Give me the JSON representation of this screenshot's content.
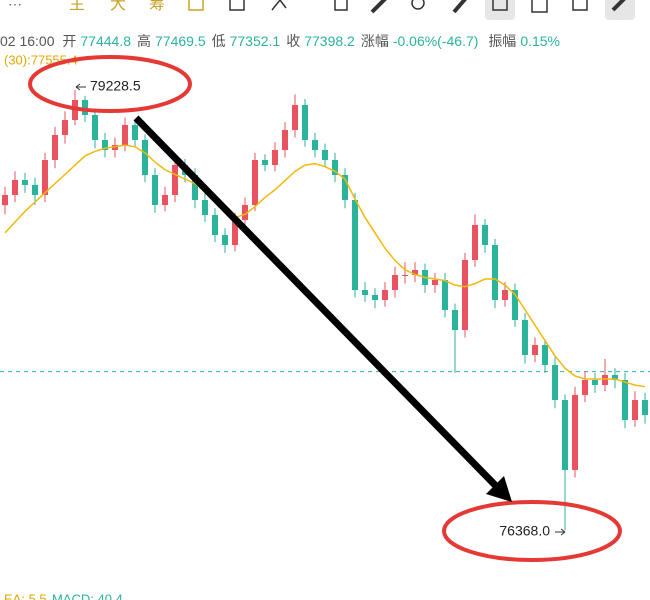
{
  "toolbar": {
    "more": "···",
    "tabs": [
      "主",
      "大",
      "筹"
    ]
  },
  "info_bar": {
    "time": "02 16:00",
    "items": [
      {
        "label": "开",
        "value": 77444.8
      },
      {
        "label": "高",
        "value": 77469.5
      },
      {
        "label": "低",
        "value": 77352.1
      },
      {
        "label": "收",
        "value": 77398.2
      }
    ],
    "change_label": "涨幅",
    "change": "-0.06%(-46.7)",
    "amplitude_label": "振幅",
    "amplitude": "0.15%"
  },
  "chart_data": {
    "type": "candlestick",
    "ma_label": "(30):77555.4",
    "up_color": "#e8535f",
    "down_color": "#2bb39c",
    "ma_color": "#f0b90b",
    "current_color": "#2bb39c",
    "ylim": [
      75978.5,
      79488.5
    ],
    "candles": [
      [
        78480,
        78600,
        78420,
        78546
      ],
      [
        78546,
        78700,
        78500,
        78643.5
      ],
      [
        78643.5,
        78690,
        78560,
        78611
      ],
      [
        78611,
        78660,
        78480,
        78546
      ],
      [
        78546,
        78820,
        78500,
        78773.5
      ],
      [
        78773.5,
        78990,
        78720,
        78936
      ],
      [
        78936,
        79090,
        78880,
        79033.5
      ],
      [
        79033.5,
        79228.5,
        79000,
        79163.5
      ],
      [
        79163.5,
        79190,
        79020,
        79066
      ],
      [
        79066,
        79110,
        78850,
        78903.5
      ],
      [
        78903.5,
        78950,
        78790,
        78838.5
      ],
      [
        78838.5,
        78920,
        78790,
        78871
      ],
      [
        78871,
        79050,
        78830,
        79001
      ],
      [
        79001,
        79040,
        78860,
        78903.5
      ],
      [
        78903.5,
        78940,
        78630,
        78676
      ],
      [
        78676,
        78720,
        78430,
        78481
      ],
      [
        78481,
        78600,
        78440,
        78546
      ],
      [
        78546,
        78790,
        78500,
        78741
      ],
      [
        78741,
        78780,
        78630,
        78676
      ],
      [
        78676,
        78720,
        78460,
        78513.5
      ],
      [
        78513.5,
        78560,
        78370,
        78416
      ],
      [
        78416,
        78460,
        78240,
        78286
      ],
      [
        78286,
        78330,
        78170,
        78221
      ],
      [
        78221,
        78430,
        78180,
        78383.5
      ],
      [
        78383.5,
        78530,
        78340,
        78481
      ],
      [
        78481,
        78820,
        78440,
        78773.5
      ],
      [
        78773.5,
        78810,
        78700,
        78741
      ],
      [
        78741,
        78890,
        78700,
        78838.5
      ],
      [
        78838.5,
        79020,
        78790,
        78968.5
      ],
      [
        78968.5,
        79200,
        78920,
        79131
      ],
      [
        79131,
        79170,
        78860,
        78903.5
      ],
      [
        78903.5,
        78950,
        78790,
        78838.5
      ],
      [
        78838.5,
        78880,
        78730,
        78773.5
      ],
      [
        78773.5,
        78820,
        78630,
        78676
      ],
      [
        78676,
        78720,
        78460,
        78513.5
      ],
      [
        78513.5,
        78560,
        77880,
        77928.5
      ],
      [
        77928.5,
        77980,
        77850,
        77896
      ],
      [
        77896,
        77940,
        77810,
        77863.5
      ],
      [
        77863.5,
        77980,
        77820,
        77928.5
      ],
      [
        77928.5,
        78080,
        77880,
        78026
      ],
      [
        78026,
        78110,
        77970,
        78026
      ],
      [
        78026,
        78110,
        77980,
        78058.5
      ],
      [
        78058.5,
        78100,
        77910,
        77961
      ],
      [
        77961,
        78040,
        77910,
        77993.5
      ],
      [
        77993.5,
        78040,
        77750,
        77798.5
      ],
      [
        77798.5,
        77840,
        77390,
        77668.5
      ],
      [
        77668.5,
        78170,
        77620,
        78123.5
      ],
      [
        78123.5,
        78420,
        78080,
        78351
      ],
      [
        78351,
        78390,
        78170,
        78221
      ],
      [
        78221,
        78260,
        77810,
        77863.5
      ],
      [
        77863.5,
        77980,
        77820,
        77928.5
      ],
      [
        77928.5,
        77970,
        77690,
        77733.5
      ],
      [
        77733.5,
        77780,
        77450,
        77506
      ],
      [
        77506,
        77620,
        77460,
        77571
      ],
      [
        77571,
        77610,
        77390,
        77441
      ],
      [
        77441,
        77490,
        77160,
        77213.5
      ],
      [
        77213.5,
        77250,
        76368,
        76758.5
      ],
      [
        76758.5,
        77300,
        76710,
        77246
      ],
      [
        77246,
        77400,
        77200,
        77343.5
      ],
      [
        77343.5,
        77390,
        77260,
        77311
      ],
      [
        77311,
        77480,
        77270,
        77376
      ],
      [
        77376,
        77420,
        77290,
        77343.5
      ],
      [
        77343.5,
        77390,
        77030,
        77083.5
      ],
      [
        77083.5,
        77270,
        77040,
        77213.5
      ],
      [
        77213.5,
        77260,
        77060,
        77116
      ]
    ],
    "ma": [
      78300,
      78370,
      78440,
      78500,
      78560,
      78620,
      78680,
      78740,
      78800,
      78830,
      78850,
      78860,
      78870,
      78860,
      78820,
      78760,
      78710,
      78680,
      78650,
      78620,
      78570,
      78500,
      78440,
      78400,
      78420,
      78470,
      78530,
      78580,
      78640,
      78700,
      78740,
      78750,
      78730,
      78700,
      78650,
      78520,
      78400,
      78300,
      78200,
      78120,
      78060,
      78030,
      78010,
      78000,
      77990,
      77960,
      77950,
      77970,
      78000,
      78000,
      77960,
      77900,
      77800,
      77700,
      77600,
      77500,
      77420,
      77370,
      77350,
      77350,
      77350,
      77350,
      77330,
      77310,
      77300
    ],
    "high_annotation": 79228.5,
    "low_annotation": {
      "value": 76368,
      "label": "76368.0"
    },
    "footer": [
      "EA: 5.5",
      "MACD: 40.4"
    ]
  }
}
